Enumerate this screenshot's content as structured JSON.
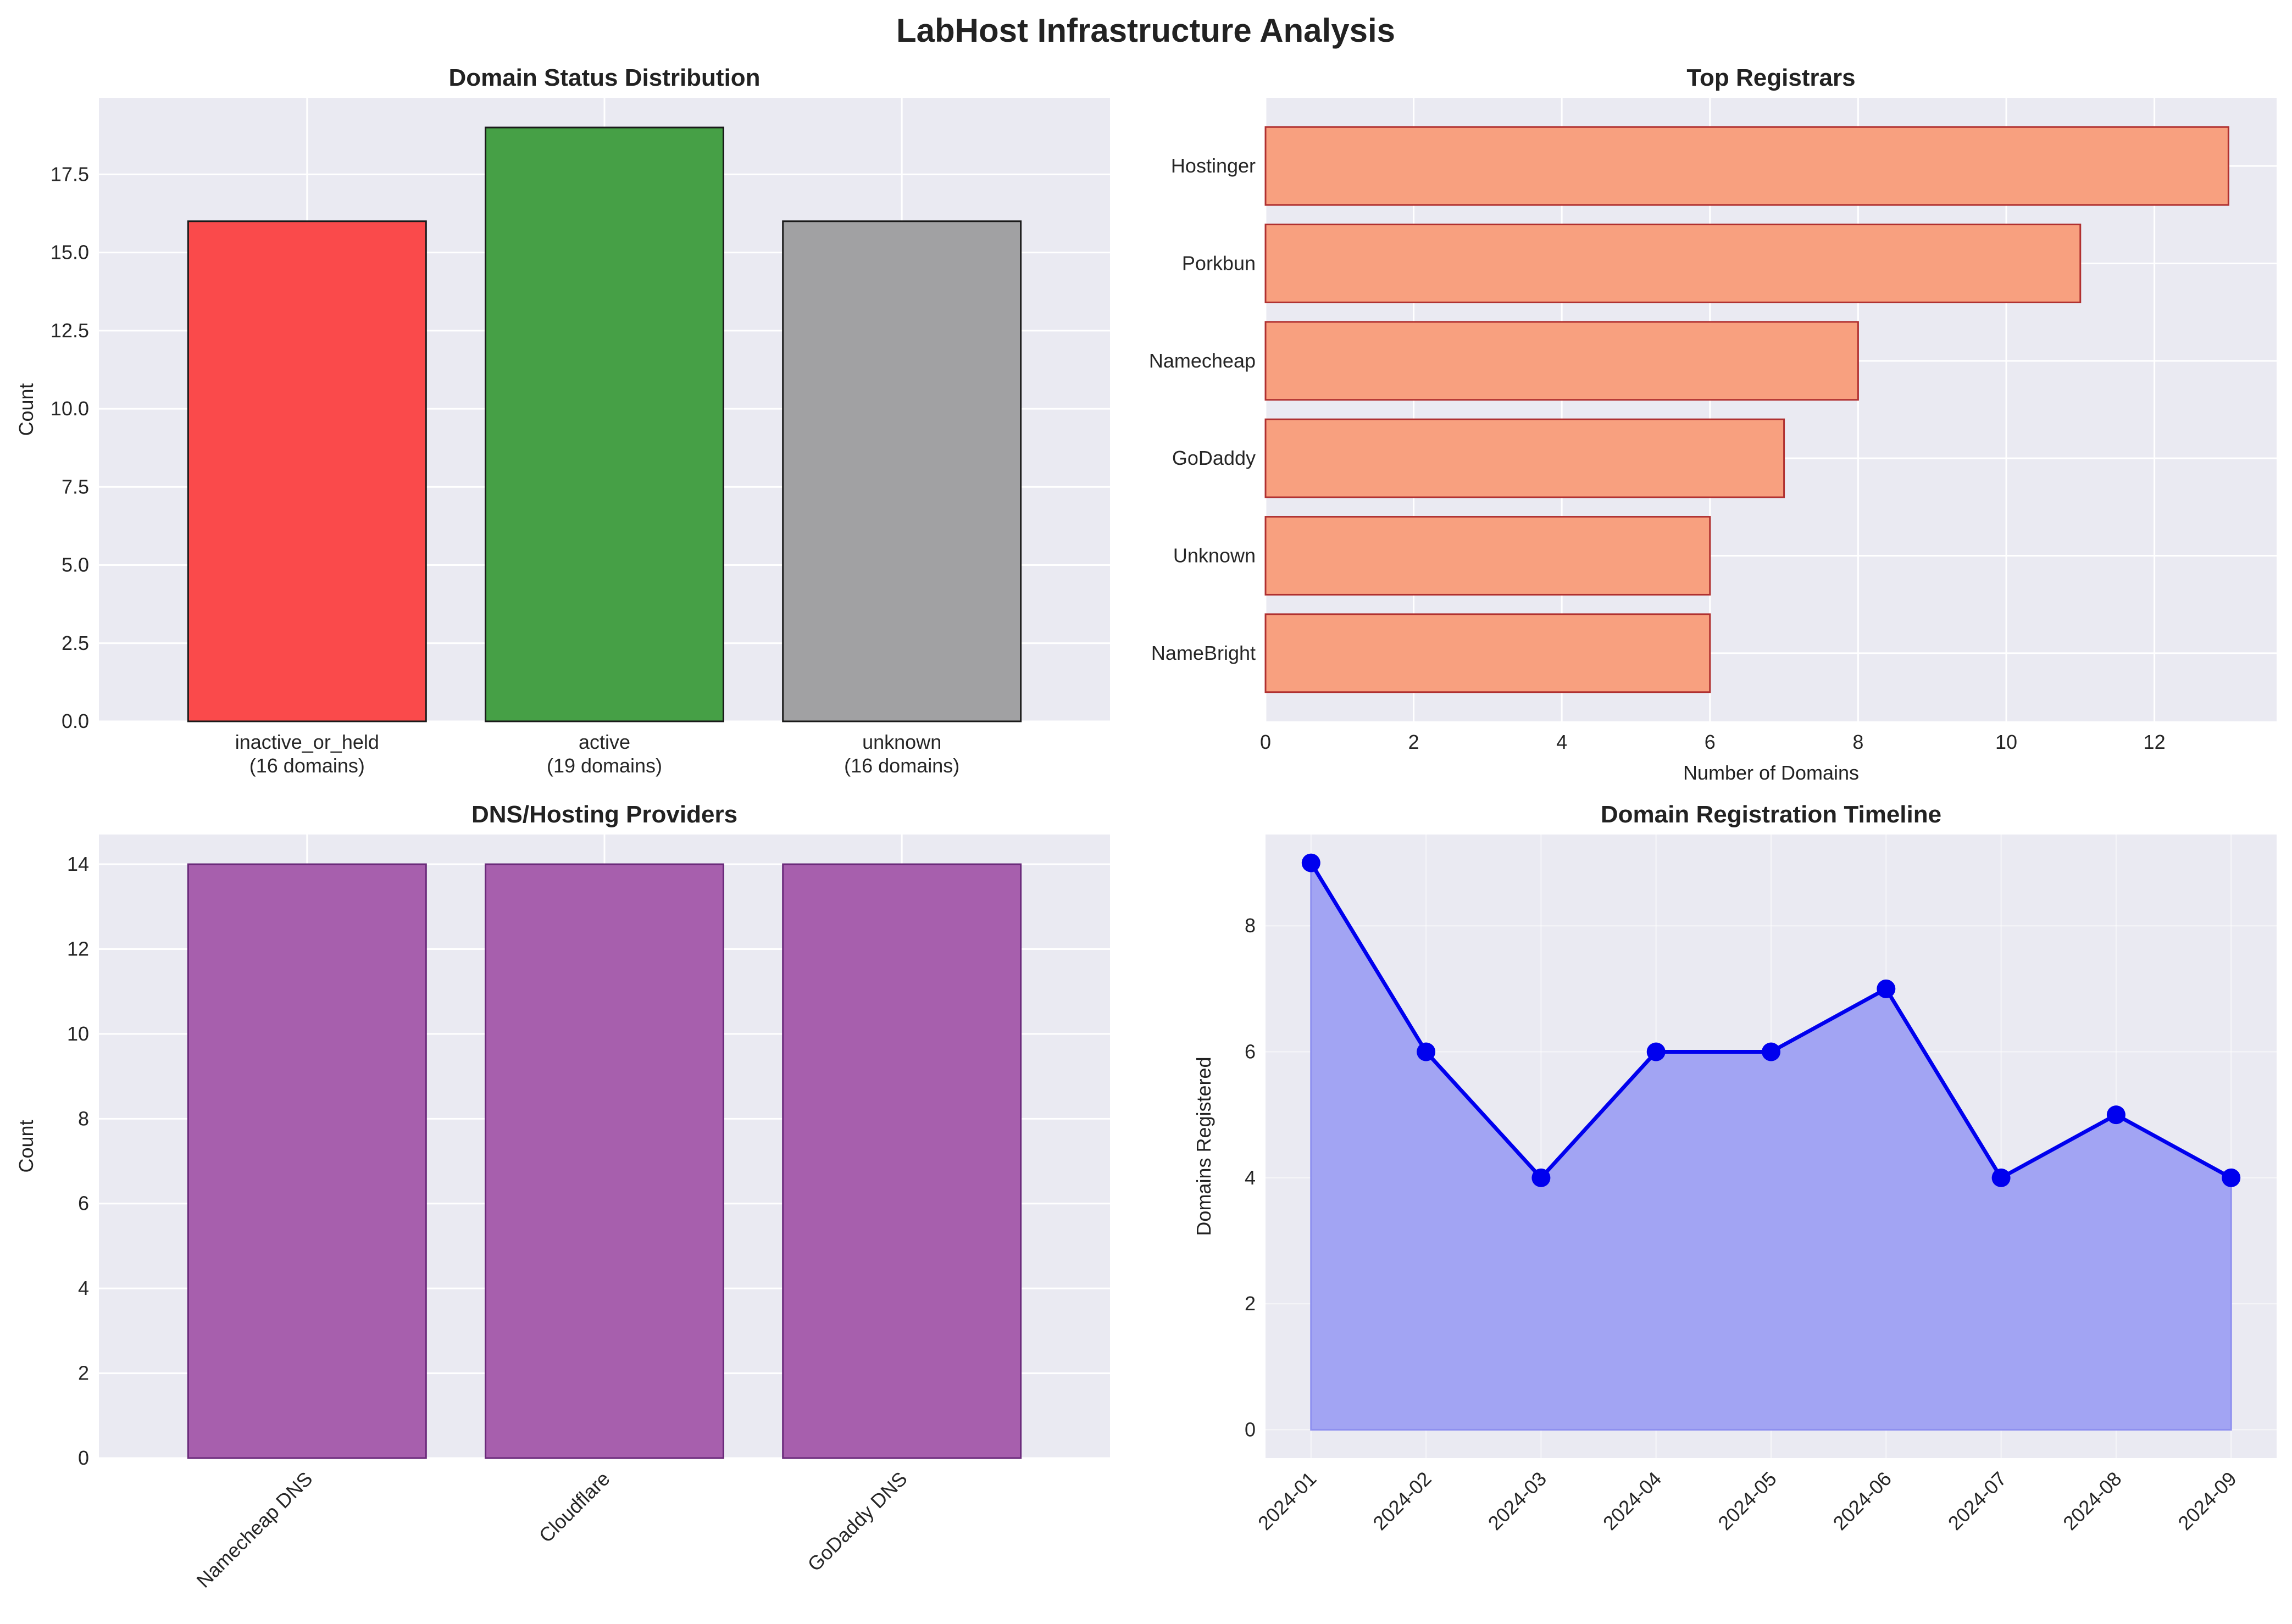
{
  "title": "LabHost Infrastructure Analysis",
  "colors": {
    "background": "#ffffff",
    "axes_bg": "#eaeaf2",
    "grid": "#ffffff",
    "text": "#222222",
    "tick_text": "#262626"
  },
  "chart_data": [
    {
      "id": "status",
      "type": "bar",
      "title": "Domain Status Distribution",
      "xlabel": "",
      "ylabel": "Count",
      "categories": [
        "inactive_or_held",
        "active",
        "unknown"
      ],
      "sublabels": [
        "(16 domains)",
        "(19 domains)",
        "(16 domains)"
      ],
      "values": [
        16,
        19,
        16
      ],
      "bar_colors": [
        "#fa4a4b",
        "#46a046",
        "#a1a1a3"
      ],
      "edge_color": "#1a1a1a",
      "ylim": [
        0,
        19.95
      ],
      "yticks": [
        0,
        2.5,
        5,
        7.5,
        10,
        12.5,
        15,
        17.5
      ],
      "ytick_labels": [
        "0.0",
        "2.5",
        "5.0",
        "7.5",
        "10.0",
        "12.5",
        "15.0",
        "17.5"
      ],
      "grid": true
    },
    {
      "id": "registrars",
      "type": "bar",
      "orientation": "horizontal",
      "title": "Top Registrars",
      "xlabel": "Number of Domains",
      "ylabel": "",
      "categories": [
        "Hostinger",
        "Porkbun",
        "Namecheap",
        "GoDaddy",
        "Unknown",
        "NameBright"
      ],
      "values": [
        13,
        11,
        8,
        7,
        6,
        6
      ],
      "bar_color": "#f8a07f",
      "edge_color": "#b03030",
      "xlim": [
        0,
        13.65
      ],
      "xticks": [
        0,
        2,
        4,
        6,
        8,
        10,
        12
      ],
      "xtick_labels": [
        "0",
        "2",
        "4",
        "6",
        "8",
        "10",
        "12"
      ],
      "grid": true
    },
    {
      "id": "dns",
      "type": "bar",
      "title": "DNS/Hosting Providers",
      "xlabel": "",
      "ylabel": "Count",
      "categories": [
        "Namecheap DNS",
        "Cloudflare",
        "GoDaddy DNS"
      ],
      "values": [
        14,
        14,
        14
      ],
      "bar_color": "#a75fad",
      "edge_color": "#6a2a7a",
      "ylim": [
        0,
        14.7
      ],
      "yticks": [
        0,
        2,
        4,
        6,
        8,
        10,
        12,
        14
      ],
      "ytick_labels": [
        "0",
        "2",
        "4",
        "6",
        "8",
        "10",
        "12",
        "14"
      ],
      "grid": true
    },
    {
      "id": "timeline",
      "type": "area",
      "title": "Domain Registration Timeline",
      "xlabel": "",
      "ylabel": "Domains Registered",
      "x": [
        "2024-01",
        "2024-02",
        "2024-03",
        "2024-04",
        "2024-05",
        "2024-06",
        "2024-07",
        "2024-08",
        "2024-09"
      ],
      "values": [
        9,
        6,
        4,
        6,
        6,
        7,
        4,
        5,
        4
      ],
      "line_color": "#0000ee",
      "fill_color": "#a2a4f3",
      "ylim": [
        -0.45,
        9.45
      ],
      "yticks": [
        0,
        2,
        4,
        6,
        8
      ],
      "ytick_labels": [
        "0",
        "2",
        "4",
        "6",
        "8"
      ],
      "grid": true
    }
  ]
}
